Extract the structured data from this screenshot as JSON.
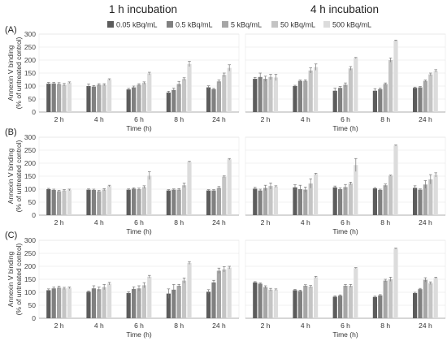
{
  "figure": {
    "column_titles": [
      "1 h incubation",
      "4 h incubation"
    ],
    "row_labels": [
      "(A)",
      "(B)",
      "(C)"
    ],
    "legend": [
      {
        "label": "0.05 kBq/mL",
        "color": "#5c5c5c"
      },
      {
        "label": "0.5 kBq/mL",
        "color": "#808080"
      },
      {
        "label": "5 kBq/mL",
        "color": "#a6a6a6"
      },
      {
        "label": "50 kBq/mL",
        "color": "#c4c4c4"
      },
      {
        "label": "500 kBq/mL",
        "color": "#dcdcdc"
      }
    ],
    "ylabel_line1": "Annexin V binding",
    "ylabel_line2": "(% of untreated control)",
    "xlabel": "Time (h)"
  },
  "chart_data": [
    {
      "type": "bar",
      "row": "(A)",
      "column": "1 h incubation",
      "categories": [
        "2 h",
        "4 h",
        "6 h",
        "8 h",
        "24 h"
      ],
      "ylim": [
        0,
        300
      ],
      "yticks": [
        0,
        50,
        100,
        150,
        200,
        250,
        300
      ],
      "series": [
        {
          "name": "0.05 kBq/mL",
          "values": [
            109,
            100,
            87,
            75,
            95
          ]
        },
        {
          "name": "0.5 kBq/mL",
          "values": [
            110,
            98,
            95,
            85,
            88
          ]
        },
        {
          "name": "5 kBq/mL",
          "values": [
            108,
            105,
            105,
            108,
            118
          ]
        },
        {
          "name": "50 kBq/mL",
          "values": [
            105,
            105,
            112,
            127,
            143
          ]
        },
        {
          "name": "500 kBq/mL",
          "values": [
            113,
            125,
            148,
            185,
            170
          ]
        }
      ],
      "errors": [
        [
          5,
          8,
          4,
          5,
          6
        ],
        [
          4,
          4,
          5,
          7,
          3
        ],
        [
          5,
          4,
          4,
          10,
          5
        ],
        [
          5,
          4,
          4,
          5,
          7
        ],
        [
          3,
          3,
          5,
          10,
          12
        ]
      ]
    },
    {
      "type": "bar",
      "row": "(A)",
      "column": "4 h incubation",
      "categories": [
        "2 h",
        "4 h",
        "6 h",
        "8 h",
        "24 h"
      ],
      "ylim": [
        0,
        300
      ],
      "yticks": [
        0,
        50,
        100,
        150,
        200,
        250,
        300
      ],
      "series": [
        {
          "name": "0.05 kBq/mL",
          "values": [
            128,
            100,
            82,
            82,
            93
          ]
        },
        {
          "name": "0.5 kBq/mL",
          "values": [
            135,
            120,
            93,
            88,
            95
          ]
        },
        {
          "name": "5 kBq/mL",
          "values": [
            128,
            120,
            105,
            108,
            120
          ]
        },
        {
          "name": "50 kBq/mL",
          "values": [
            135,
            160,
            168,
            200,
            145
          ]
        },
        {
          "name": "500 kBq/mL",
          "values": [
            133,
            173,
            208,
            275,
            158
          ]
        }
      ],
      "errors": [
        [
          5,
          3,
          10,
          8,
          3
        ],
        [
          15,
          3,
          5,
          4,
          3
        ],
        [
          10,
          4,
          7,
          4,
          3
        ],
        [
          10,
          10,
          7,
          8,
          5
        ],
        [
          12,
          12,
          2,
          2,
          5
        ]
      ]
    },
    {
      "type": "bar",
      "row": "(B)",
      "column": "1 h incubation",
      "categories": [
        "2 h",
        "4 h",
        "6 h",
        "8 h",
        "24 h"
      ],
      "ylim": [
        0,
        300
      ],
      "yticks": [
        0,
        50,
        100,
        150,
        200,
        250,
        300
      ],
      "series": [
        {
          "name": "0.05 kBq/mL",
          "values": [
            100,
            98,
            98,
            95,
            95
          ]
        },
        {
          "name": "0.5 kBq/mL",
          "values": [
            97,
            97,
            102,
            98,
            95
          ]
        },
        {
          "name": "5 kBq/mL",
          "values": [
            92,
            92,
            100,
            98,
            105
          ]
        },
        {
          "name": "50 kBq/mL",
          "values": [
            95,
            98,
            108,
            115,
            148
          ]
        },
        {
          "name": "500 kBq/mL",
          "values": [
            97,
            112,
            152,
            205,
            215
          ]
        }
      ],
      "errors": [
        [
          3,
          3,
          3,
          3,
          3
        ],
        [
          3,
          3,
          3,
          3,
          3
        ],
        [
          3,
          3,
          4,
          4,
          5
        ],
        [
          3,
          4,
          5,
          8,
          3
        ],
        [
          3,
          3,
          15,
          2,
          3
        ]
      ]
    },
    {
      "type": "bar",
      "row": "(B)",
      "column": "4 h incubation",
      "categories": [
        "2 h",
        "4 h",
        "6 h",
        "8 h",
        "24 h"
      ],
      "ylim": [
        0,
        300
      ],
      "yticks": [
        0,
        50,
        100,
        150,
        200,
        250,
        300
      ],
      "series": [
        {
          "name": "0.05 kBq/mL",
          "values": [
            102,
            107,
            107,
            103,
            105
          ]
        },
        {
          "name": "0.5 kBq/mL",
          "values": [
            95,
            100,
            100,
            97,
            98
          ]
        },
        {
          "name": "5 kBq/mL",
          "values": [
            105,
            98,
            108,
            115,
            118
          ]
        },
        {
          "name": "50 kBq/mL",
          "values": [
            112,
            122,
            122,
            152,
            138
          ]
        },
        {
          "name": "500 kBq/mL",
          "values": [
            110,
            158,
            193,
            268,
            155
          ]
        }
      ],
      "errors": [
        [
          5,
          10,
          5,
          3,
          8
        ],
        [
          5,
          15,
          5,
          3,
          3
        ],
        [
          10,
          10,
          10,
          5,
          15
        ],
        [
          12,
          18,
          5,
          2,
          18
        ],
        [
          3,
          3,
          25,
          2,
          8
        ]
      ]
    },
    {
      "type": "bar",
      "row": "(C)",
      "column": "1 h incubation",
      "categories": [
        "2 h",
        "4 h",
        "6 h",
        "8 h",
        "24 h"
      ],
      "ylim": [
        0,
        300
      ],
      "yticks": [
        0,
        50,
        100,
        150,
        200,
        250,
        300
      ],
      "series": [
        {
          "name": "0.05 kBq/mL",
          "values": [
            108,
            102,
            97,
            95,
            102
          ]
        },
        {
          "name": "0.5 kBq/mL",
          "values": [
            115,
            115,
            113,
            110,
            138
          ]
        },
        {
          "name": "5 kBq/mL",
          "values": [
            118,
            112,
            115,
            125,
            183
          ]
        },
        {
          "name": "50 kBq/mL",
          "values": [
            115,
            120,
            127,
            145,
            188
          ]
        },
        {
          "name": "500 kBq/mL",
          "values": [
            117,
            133,
            160,
            213,
            195
          ]
        }
      ],
      "errors": [
        [
          5,
          3,
          5,
          18,
          8
        ],
        [
          5,
          10,
          8,
          20,
          8
        ],
        [
          5,
          8,
          10,
          5,
          10
        ],
        [
          4,
          10,
          10,
          10,
          10
        ],
        [
          3,
          5,
          5,
          5,
          5
        ]
      ]
    },
    {
      "type": "bar",
      "row": "(C)",
      "column": "4 h incubation",
      "categories": [
        "2 h",
        "4 h",
        "6 h",
        "8 h",
        "24 h"
      ],
      "ylim": [
        0,
        300
      ],
      "yticks": [
        0,
        50,
        100,
        150,
        200,
        250,
        300
      ],
      "series": [
        {
          "name": "0.05 kBq/mL",
          "values": [
            138,
            108,
            83,
            82,
            97
          ]
        },
        {
          "name": "0.5 kBq/mL",
          "values": [
            133,
            105,
            87,
            88,
            112
          ]
        },
        {
          "name": "5 kBq/mL",
          "values": [
            120,
            125,
            125,
            145,
            148
          ]
        },
        {
          "name": "50 kBq/mL",
          "values": [
            110,
            122,
            125,
            150,
            135
          ]
        },
        {
          "name": "500 kBq/mL",
          "values": [
            110,
            158,
            193,
            268,
            155
          ]
        }
      ],
      "errors": [
        [
          3,
          3,
          3,
          3,
          3
        ],
        [
          3,
          3,
          3,
          3,
          3
        ],
        [
          5,
          4,
          5,
          5,
          8
        ],
        [
          5,
          4,
          5,
          8,
          5
        ],
        [
          3,
          3,
          2,
          2,
          3
        ]
      ]
    }
  ]
}
